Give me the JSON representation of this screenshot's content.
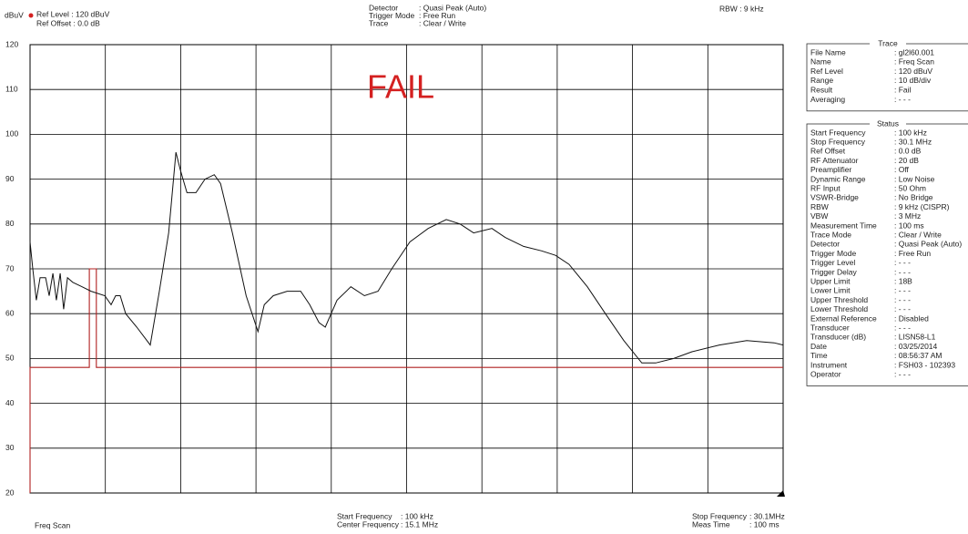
{
  "chart_data": {
    "type": "line",
    "y_label": "dBuV",
    "annotation": "FAIL",
    "annotation_color": "#d42020",
    "x": [
      0.1,
      0.21,
      0.35,
      0.5,
      0.72,
      0.86,
      1.01,
      1.15,
      1.3,
      1.44,
      1.59,
      1.8,
      2.17,
      2.53,
      3.08,
      3.33,
      3.51,
      3.69,
      3.91,
      4.35,
      4.89,
      5.25,
      5.62,
      5.91,
      6.09,
      6.35,
      6.71,
      7.07,
      7.44,
      7.69,
      8.16,
      8.71,
      9.18,
      9.43,
      9.79,
      10.34,
      10.88,
      11.24,
      11.61,
      11.86,
      12.33,
      12.88,
      13.42,
      13.96,
      14.51,
      15.23,
      15.96,
      16.68,
      17.23,
      17.77,
      18.5,
      19.03,
      19.76,
      20.48,
      21.03,
      21.57,
      22.3,
      23.02,
      23.75,
      24.47,
      25.02,
      25.74,
      26.47,
      27.56,
      28.65,
      29.74,
      30.1
    ],
    "values": [
      76,
      70,
      63,
      68,
      68,
      64,
      69,
      63,
      69,
      61,
      68,
      67,
      66,
      65,
      64,
      62,
      64,
      64,
      60,
      57,
      53,
      65,
      78,
      96,
      92,
      87,
      87,
      90,
      91,
      89,
      78,
      64,
      56,
      62,
      64,
      65,
      65,
      62,
      58,
      57,
      63,
      66,
      64,
      65,
      70,
      76,
      79,
      81,
      80,
      78,
      79,
      77,
      75,
      74,
      73,
      71,
      66,
      60,
      54,
      49,
      49,
      50,
      51.5,
      53,
      54,
      53.5,
      53
    ],
    "color": "#111111",
    "limit_line": {
      "x": [
        0.1,
        0.1,
        2.46,
        2.46,
        2.74,
        2.74,
        30.1
      ],
      "values": [
        20,
        48,
        48,
        70,
        70,
        48,
        48
      ],
      "color": "#b02020"
    },
    "xlim": [
      0.1,
      30.1
    ],
    "ylim": [
      20,
      120
    ],
    "yticks": [
      20,
      30,
      40,
      50,
      60,
      70,
      80,
      90,
      100,
      110,
      120
    ],
    "grid": true
  },
  "header": {
    "ref_level": "Ref Level : 120  dBuV",
    "ref_offset": "Ref Offset :  0.0 dB",
    "settings": [
      [
        "Detector",
        ": Quasi Peak (Auto)"
      ],
      [
        "Trigger Mode",
        ": Free Run"
      ],
      [
        "Trace",
        ": Clear / Write"
      ]
    ],
    "rbw": "RBW : 9 kHz"
  },
  "footer": {
    "mode": "Freq Scan",
    "center": [
      [
        "Start Frequency",
        ": 100  kHz"
      ],
      [
        "Center Frequency",
        ": 15.1 MHz"
      ]
    ],
    "right": [
      [
        "Stop Frequency",
        ": 30.1MHz"
      ],
      [
        "Meas Time",
        ": 100  ms"
      ]
    ]
  },
  "panel": {
    "trace_title": "Trace",
    "trace_rows": [
      [
        "File Name",
        ": gl2l60.001"
      ],
      [
        "Name",
        ": Freq Scan"
      ],
      [
        "Ref Level",
        ": 120   dBuV"
      ],
      [
        "Range",
        ": 10 dB/div"
      ],
      [
        "Result",
        ": Fail"
      ],
      [
        "Averaging",
        ": - - -"
      ]
    ],
    "status_title": "Status",
    "status_rows": [
      [
        "Start Frequency",
        ": 100   kHz"
      ],
      [
        "Stop Frequency",
        ":  30.1 MHz"
      ],
      [
        "Ref Offset",
        ":    0.0 dB"
      ],
      [
        "RF Attenuator",
        ":  20   dB"
      ],
      [
        "Preamplifier",
        ": Off"
      ],
      [
        "Dynamic Range",
        ": Low Noise"
      ],
      [
        "RF Input",
        ":  50   Ohm"
      ],
      [
        "VSWR-Bridge",
        ": No Bridge"
      ],
      [
        "RBW",
        ":     9   kHz (CISPR)"
      ],
      [
        "VBW",
        ":     3   MHz"
      ],
      [
        "Measurement Time",
        ": 100   ms"
      ],
      [
        "Trace Mode",
        ": Clear / Write"
      ],
      [
        "Detector",
        ": Quasi Peak (Auto)"
      ],
      [
        "Trigger Mode",
        ": Free Run"
      ],
      [
        "Trigger Level",
        ": - - -"
      ],
      [
        "Trigger Delay",
        ": - - -"
      ],
      [
        "Upper Limit",
        ": 18B"
      ],
      [
        "Lower Limit",
        ": - - -"
      ],
      [
        "Upper Threshold",
        ": - - -"
      ],
      [
        "Lower Threshold",
        ": - - -"
      ],
      [
        "External Reference",
        ": Disabled"
      ],
      [
        "Transducer",
        ": - - -"
      ],
      [
        "Transducer (dB)",
        ": LISN58-L1"
      ],
      [
        "Date",
        ": 03/25/2014"
      ],
      [
        "Time",
        ": 08:56:37 AM"
      ],
      [
        "Instrument",
        ": FSH03 - 102393"
      ],
      [
        "Operator",
        ": - - -"
      ]
    ]
  }
}
